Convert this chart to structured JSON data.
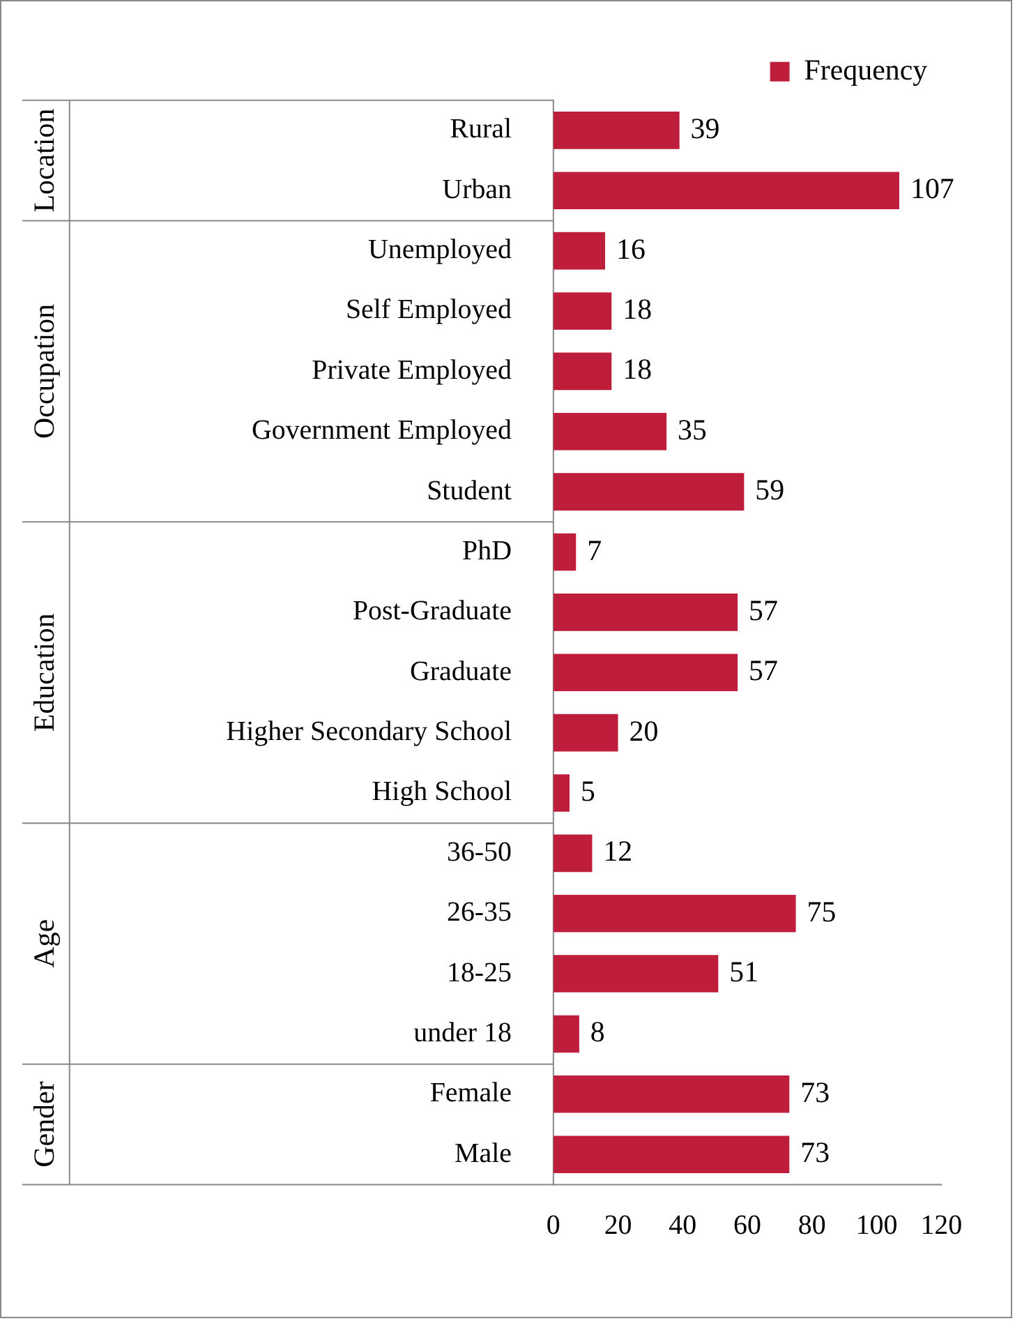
{
  "chart_data": {
    "type": "bar",
    "orientation": "horizontal",
    "categories": [
      "Rural",
      "Urban",
      "Unemployed",
      "Self Employed",
      "Private Employed",
      "Government Employed",
      "Student",
      "PhD",
      "Post-Graduate",
      "Graduate",
      "Higher Secondary School",
      "High School",
      "36-50",
      "26-35",
      "18-25",
      "under 18",
      "Female",
      "Male"
    ],
    "series": [
      {
        "name": "Frequency",
        "color": "#be1e3c",
        "values": [
          39,
          107,
          16,
          18,
          18,
          35,
          59,
          7,
          57,
          57,
          20,
          5,
          12,
          75,
          51,
          8,
          73,
          73
        ]
      }
    ],
    "xlim": [
      0,
      120
    ],
    "xticks": [
      0,
      20,
      40,
      60,
      80,
      100,
      120
    ],
    "annotations": [
      "Location",
      "Occupation",
      "Education",
      "Age",
      "Gender"
    ],
    "data_labels": true,
    "grid": false,
    "legend": "top right"
  }
}
